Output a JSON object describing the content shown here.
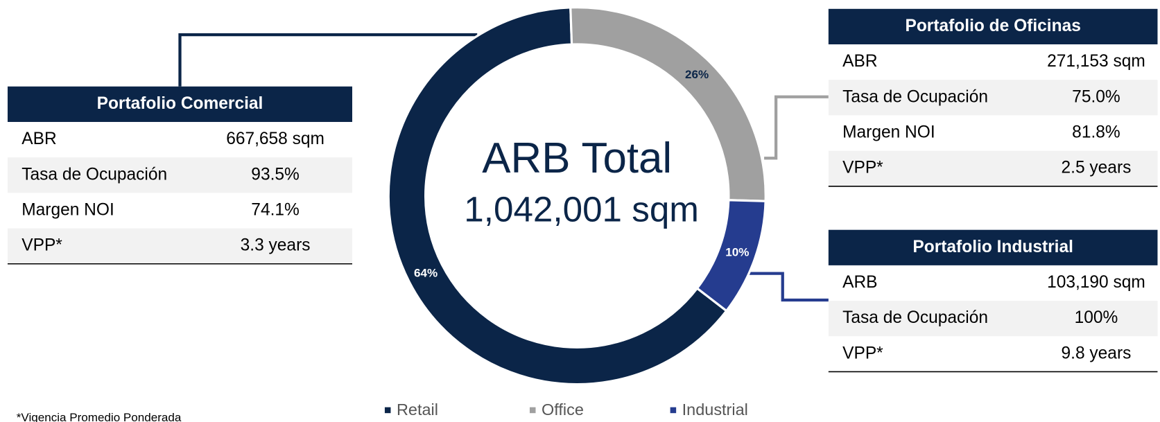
{
  "chart_data": {
    "type": "donut",
    "center_title": "ARB Total",
    "center_subtitle": "1,042,001 sqm",
    "categories": [
      "Retail",
      "Office",
      "Industrial"
    ],
    "values": [
      64,
      26,
      10
    ],
    "value_labels": [
      "64%",
      "26%",
      "10%"
    ],
    "colors": [
      "#0b2548",
      "#a0a0a0",
      "#253c8f"
    ],
    "legend": "bottom"
  },
  "tables": [
    {
      "title": "Portafolio Comercial",
      "rows": [
        [
          "ABR",
          "667,658 sqm"
        ],
        [
          "Tasa de Ocupación",
          "93.5%"
        ],
        [
          "Margen NOI",
          "74.1%"
        ],
        [
          "VPP*",
          "3.3 years"
        ]
      ]
    },
    {
      "title": "Portafolio de Oficinas",
      "rows": [
        [
          "ABR",
          "271,153 sqm"
        ],
        [
          "Tasa de Ocupación",
          "75.0%"
        ],
        [
          "Margen NOI",
          "81.8%"
        ],
        [
          "VPP*",
          "2.5 years"
        ]
      ]
    },
    {
      "title": "Portafolio Industrial",
      "rows": [
        [
          "ARB",
          "103,190 sqm"
        ],
        [
          "Tasa de Ocupación",
          "100%"
        ],
        [
          "VPP*",
          "9.8 years"
        ]
      ]
    }
  ],
  "footnote": "*Vigencia Promedio Ponderada"
}
